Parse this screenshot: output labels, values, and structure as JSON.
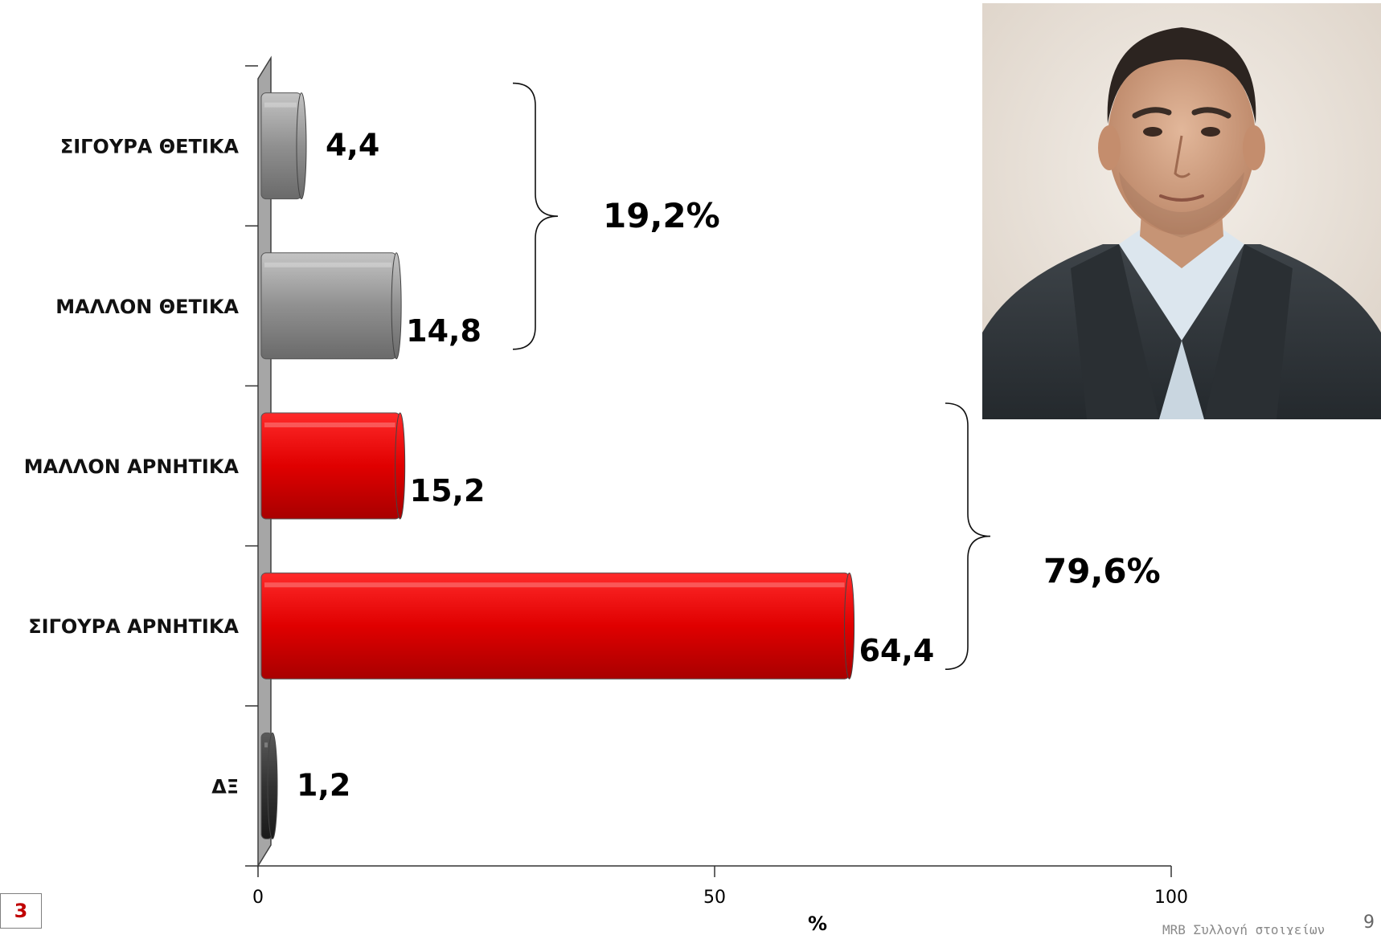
{
  "chart_data": {
    "type": "bar",
    "orientation": "horizontal",
    "categories": [
      "ΣΙΓΟΥΡΑ ΘΕΤΙΚΑ",
      "ΜΑΛΛΟΝ ΘΕΤΙΚΑ",
      "ΜΑΛΛΟΝ ΑΡΝΗΤΙΚΑ",
      "ΣΙΓΟΥΡΑ ΑΡΝΗΤΙΚΑ",
      "ΔΞ"
    ],
    "values": [
      4.4,
      14.8,
      15.2,
      64.4,
      1.2
    ],
    "value_labels": [
      "4,4",
      "14,8",
      "15,2",
      "64,4",
      "1,2"
    ],
    "bar_colors": [
      "#8c8c8c",
      "#8c8c8c",
      "#e00000",
      "#e00000",
      "#333333"
    ],
    "xlim": [
      0,
      100
    ],
    "xticks": [
      0,
      50,
      100
    ],
    "xlabel": "%",
    "grid": false,
    "legend": "none",
    "groups": [
      {
        "label": "19,2%",
        "from": 0,
        "to": 1
      },
      {
        "label": "79,6%",
        "from": 2,
        "to": 3
      }
    ]
  },
  "slide": {
    "page_box": "3",
    "footer_note": "MRB Συλλογή στοιχείων",
    "page_number": "9"
  },
  "image": {
    "description_icon": "portrait-photo"
  }
}
